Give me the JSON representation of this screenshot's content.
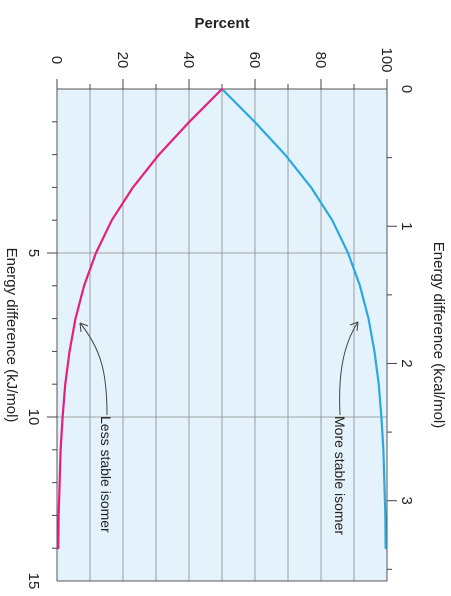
{
  "chart_data": {
    "type": "line",
    "title": "",
    "percent_axis": {
      "label": "Percent",
      "range": [
        0,
        100
      ],
      "ticks": [
        0,
        20,
        40,
        60,
        80,
        100
      ],
      "tick_labels": [
        "0",
        "20",
        "40",
        "60",
        "80",
        "100"
      ]
    },
    "kj_axis": {
      "label": "Energy difference (kJ/mol)",
      "range": [
        0,
        15
      ],
      "ticks": [
        5,
        10,
        15
      ],
      "tick_labels": [
        "5",
        "10",
        "15"
      ]
    },
    "kcal_axis": {
      "label": "Energy difference (kcal/mol)",
      "range": [
        0,
        3.585
      ],
      "ticks": [
        0,
        1,
        2,
        3
      ],
      "tick_labels": [
        "0",
        "1",
        "2",
        "3"
      ]
    },
    "grid": true,
    "series": [
      {
        "name": "More stable isomer",
        "color": "#2aa8e0",
        "x_kJ": [
          0,
          1,
          2,
          3,
          4,
          5,
          6,
          7,
          8,
          9,
          10,
          11,
          12,
          13,
          14
        ],
        "y_percent": [
          50,
          59.9,
          69.1,
          77.0,
          83.4,
          88.2,
          91.8,
          94.4,
          96.2,
          97.5,
          98.3,
          98.9,
          99.2,
          99.5,
          99.6
        ]
      },
      {
        "name": "Less stable isomer",
        "color": "#e5207c",
        "x_kJ": [
          0,
          1,
          2,
          3,
          4,
          5,
          6,
          7,
          8,
          9,
          10,
          11,
          12,
          13,
          14
        ],
        "y_percent": [
          50,
          40.1,
          30.9,
          23.0,
          16.6,
          11.8,
          8.2,
          5.6,
          3.8,
          2.5,
          1.7,
          1.1,
          0.8,
          0.5,
          0.4
        ]
      }
    ],
    "annotations": [
      {
        "text": "More stable isomer",
        "series": "More stable isomer"
      },
      {
        "text": "Less stable isomer",
        "series": "Less stable isomer"
      }
    ]
  }
}
